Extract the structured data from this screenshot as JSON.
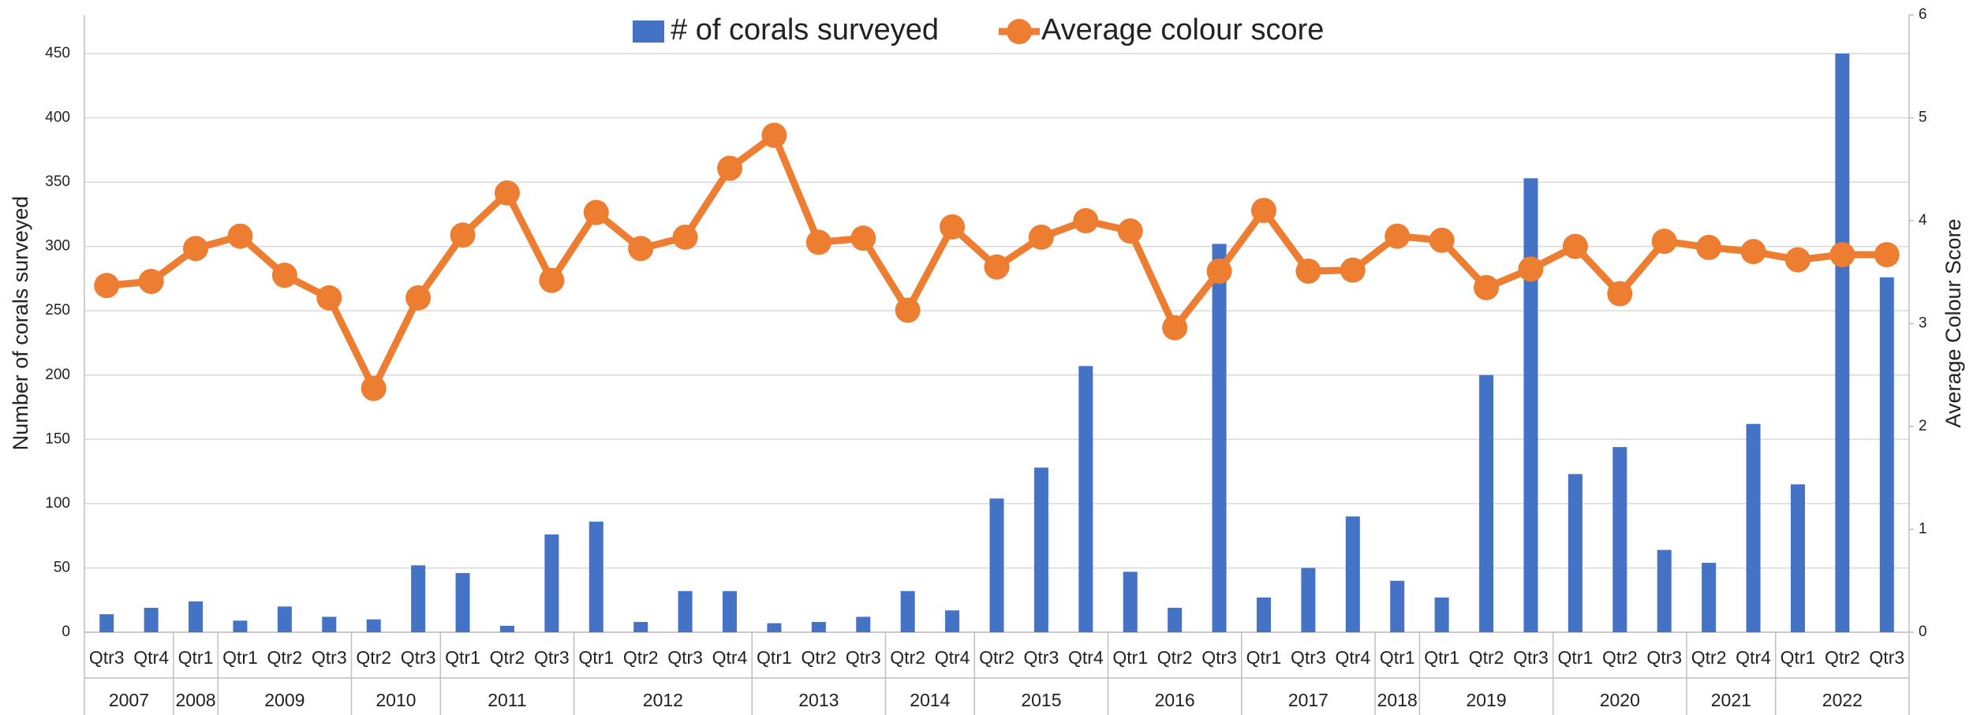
{
  "chart_data": {
    "type": "bar",
    "y_axis_label": "Number of corals surveyed",
    "y2_axis_label": "Average Colour Score",
    "categories": [
      "Qtr3",
      "Qtr4",
      "Qtr1",
      "Qtr1",
      "Qtr2",
      "Qtr3",
      "Qtr2",
      "Qtr3",
      "Qtr1",
      "Qtr2",
      "Qtr3",
      "Qtr1",
      "Qtr2",
      "Qtr3",
      "Qtr4",
      "Qtr1",
      "Qtr2",
      "Qtr3",
      "Qtr2",
      "Qtr4",
      "Qtr2",
      "Qtr3",
      "Qtr4",
      "Qtr1",
      "Qtr2",
      "Qtr3",
      "Qtr1",
      "Qtr3",
      "Qtr4",
      "Qtr1",
      "Qtr1",
      "Qtr2",
      "Qtr3",
      "Qtr1",
      "Qtr2",
      "Qtr3",
      "Qtr2",
      "Qtr4",
      "Qtr1",
      "Qtr2",
      "Qtr3"
    ],
    "category_groups": [
      {
        "label": "2007",
        "size": 2
      },
      {
        "label": "2008",
        "size": 1
      },
      {
        "label": "2009",
        "size": 3
      },
      {
        "label": "2010",
        "size": 2
      },
      {
        "label": "2011",
        "size": 3
      },
      {
        "label": "2012",
        "size": 4
      },
      {
        "label": "2013",
        "size": 3
      },
      {
        "label": "2014",
        "size": 2
      },
      {
        "label": "2015",
        "size": 3
      },
      {
        "label": "2016",
        "size": 3
      },
      {
        "label": "2017",
        "size": 3
      },
      {
        "label": "2018",
        "size": 1
      },
      {
        "label": "2019",
        "size": 3
      },
      {
        "label": "2020",
        "size": 3
      },
      {
        "label": "2021",
        "size": 2
      },
      {
        "label": "2022",
        "size": 3
      }
    ],
    "series": [
      {
        "name": "# of corals surveyed",
        "type": "bar",
        "color": "#4472c4",
        "values": [
          14,
          19,
          24,
          9,
          20,
          12,
          10,
          52,
          46,
          5,
          76,
          86,
          8,
          32,
          32,
          7,
          8,
          12,
          32,
          17,
          104,
          128,
          207,
          47,
          19,
          302,
          27,
          50,
          90,
          40,
          27,
          200,
          353,
          123,
          144,
          64,
          54,
          162,
          115,
          450,
          276
        ]
      },
      {
        "name": "Average colour score",
        "type": "line",
        "axis": "y2",
        "color": "#ed7d31",
        "values": [
          3.37,
          3.41,
          3.73,
          3.85,
          3.47,
          3.25,
          2.37,
          3.25,
          3.86,
          4.27,
          3.42,
          4.08,
          3.73,
          3.84,
          4.51,
          4.83,
          3.79,
          3.83,
          3.13,
          3.94,
          3.55,
          3.84,
          4.0,
          3.9,
          2.96,
          3.51,
          4.1,
          3.51,
          3.52,
          3.85,
          3.81,
          3.35,
          3.53,
          3.75,
          3.29,
          3.8,
          3.74,
          3.7,
          3.62,
          3.67,
          3.67
        ]
      }
    ],
    "ylim": [
      0,
      480
    ],
    "yticks": [
      0,
      50,
      100,
      150,
      200,
      250,
      300,
      350,
      400,
      450
    ],
    "y2lim": [
      0,
      6
    ],
    "y2ticks": [
      0,
      1,
      2,
      3,
      4,
      5,
      6
    ],
    "grid": true,
    "legend": "top"
  }
}
